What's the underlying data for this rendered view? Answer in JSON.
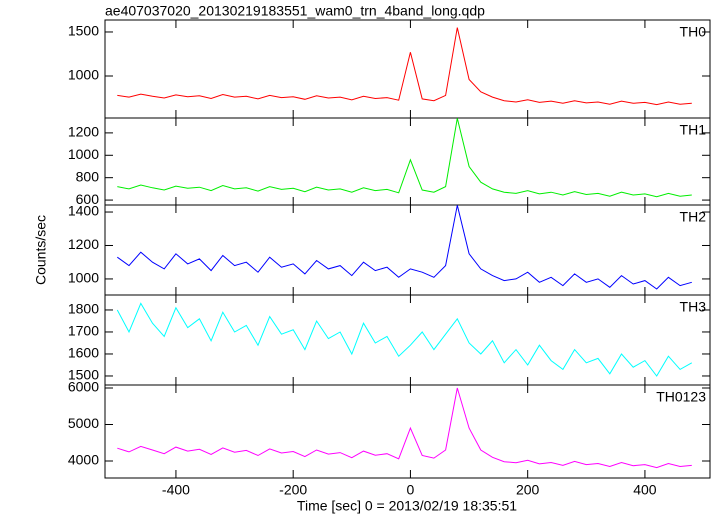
{
  "figure": {
    "title": "ae407037020_20130219183551_wam0_trn_4band_long.qdp",
    "ylabel": "Counts/sec",
    "xlabel": "Time [sec] 0 = 2013/02/19 18:35:51"
  },
  "chart_data": [
    {
      "type": "line",
      "xlim": [
        -521,
        511
      ],
      "xticks": [
        -400,
        -200,
        0,
        200,
        400
      ],
      "ylim": [
        523,
        1636
      ],
      "yticks": [
        1000,
        1500
      ],
      "x": [
        -500,
        -480,
        -460,
        -440,
        -420,
        -400,
        -380,
        -360,
        -340,
        -320,
        -300,
        -280,
        -260,
        -240,
        -220,
        -200,
        -180,
        -160,
        -140,
        -120,
        -100,
        -80,
        -60,
        -40,
        -20,
        0,
        20,
        40,
        60,
        80,
        100,
        120,
        140,
        160,
        180,
        200,
        220,
        240,
        260,
        280,
        300,
        320,
        340,
        360,
        380,
        400,
        420,
        440,
        460,
        480
      ],
      "series": [
        {
          "name": "TH0",
          "color": "#ff0000",
          "values": [
            780,
            760,
            795,
            770,
            750,
            785,
            765,
            775,
            745,
            790,
            760,
            770,
            740,
            780,
            755,
            765,
            735,
            775,
            750,
            760,
            730,
            770,
            745,
            755,
            725,
            1270,
            740,
            720,
            780,
            1550,
            960,
            820,
            760,
            720,
            705,
            730,
            700,
            715,
            690,
            720,
            695,
            705,
            680,
            715,
            690,
            700,
            675,
            705,
            680,
            690
          ]
        }
      ]
    },
    {
      "type": "line",
      "xlim": [
        -521,
        511
      ],
      "xticks": [
        -400,
        -200,
        0,
        200,
        400
      ],
      "ylim": [
        556,
        1333
      ],
      "yticks": [
        600,
        800,
        1000,
        1200
      ],
      "x": [
        -500,
        -480,
        -460,
        -440,
        -420,
        -400,
        -380,
        -360,
        -340,
        -320,
        -300,
        -280,
        -260,
        -240,
        -220,
        -200,
        -180,
        -160,
        -140,
        -120,
        -100,
        -80,
        -60,
        -40,
        -20,
        0,
        20,
        40,
        60,
        80,
        100,
        120,
        140,
        160,
        180,
        200,
        220,
        240,
        260,
        280,
        300,
        320,
        340,
        360,
        380,
        400,
        420,
        440,
        460,
        480
      ],
      "series": [
        {
          "name": "TH1",
          "color": "#00ee00",
          "values": [
            720,
            700,
            735,
            710,
            690,
            725,
            705,
            715,
            685,
            730,
            700,
            710,
            680,
            720,
            695,
            705,
            675,
            715,
            690,
            700,
            670,
            710,
            685,
            695,
            665,
            960,
            690,
            670,
            720,
            1330,
            900,
            760,
            700,
            670,
            660,
            685,
            655,
            670,
            645,
            675,
            650,
            660,
            635,
            670,
            645,
            655,
            630,
            660,
            635,
            645
          ]
        }
      ]
    },
    {
      "type": "line",
      "xlim": [
        -521,
        511
      ],
      "xticks": [
        -400,
        -200,
        0,
        200,
        400
      ],
      "ylim": [
        904,
        1442
      ],
      "yticks": [
        1000,
        1200,
        1400
      ],
      "x": [
        -500,
        -480,
        -460,
        -440,
        -420,
        -400,
        -380,
        -360,
        -340,
        -320,
        -300,
        -280,
        -260,
        -240,
        -220,
        -200,
        -180,
        -160,
        -140,
        -120,
        -100,
        -80,
        -60,
        -40,
        -20,
        0,
        20,
        40,
        60,
        80,
        100,
        120,
        140,
        160,
        180,
        200,
        220,
        240,
        260,
        280,
        300,
        320,
        340,
        360,
        380,
        400,
        420,
        440,
        460,
        480
      ],
      "series": [
        {
          "name": "TH2",
          "color": "#0000ff",
          "values": [
            1130,
            1080,
            1160,
            1100,
            1060,
            1150,
            1090,
            1120,
            1050,
            1140,
            1080,
            1100,
            1040,
            1130,
            1070,
            1090,
            1030,
            1110,
            1060,
            1080,
            1020,
            1100,
            1050,
            1070,
            1010,
            1060,
            1040,
            1010,
            1080,
            1440,
            1150,
            1060,
            1020,
            990,
            1000,
            1040,
            980,
            1010,
            960,
            1030,
            980,
            1000,
            950,
            1020,
            970,
            990,
            940,
            1010,
            960,
            980
          ]
        }
      ]
    },
    {
      "type": "line",
      "xlim": [
        -521,
        511
      ],
      "xticks": [
        -400,
        -200,
        0,
        200,
        400
      ],
      "ylim": [
        1459,
        1868
      ],
      "yticks": [
        1500,
        1600,
        1700,
        1800
      ],
      "x": [
        -500,
        -480,
        -460,
        -440,
        -420,
        -400,
        -380,
        -360,
        -340,
        -320,
        -300,
        -280,
        -260,
        -240,
        -220,
        -200,
        -180,
        -160,
        -140,
        -120,
        -100,
        -80,
        -60,
        -40,
        -20,
        0,
        20,
        40,
        60,
        80,
        100,
        120,
        140,
        160,
        180,
        200,
        220,
        240,
        260,
        280,
        300,
        320,
        340,
        360,
        380,
        400,
        420,
        440,
        460,
        480
      ],
      "series": [
        {
          "name": "TH3",
          "color": "#00ffff",
          "values": [
            1800,
            1700,
            1830,
            1740,
            1680,
            1810,
            1720,
            1760,
            1660,
            1790,
            1700,
            1730,
            1640,
            1770,
            1690,
            1710,
            1620,
            1750,
            1670,
            1700,
            1600,
            1740,
            1650,
            1680,
            1590,
            1640,
            1700,
            1620,
            1690,
            1760,
            1650,
            1600,
            1660,
            1560,
            1620,
            1550,
            1640,
            1570,
            1530,
            1620,
            1560,
            1580,
            1510,
            1600,
            1540,
            1570,
            1500,
            1590,
            1530,
            1560
          ]
        }
      ]
    },
    {
      "type": "line",
      "xlim": [
        -521,
        511
      ],
      "xticks": [
        -400,
        -200,
        0,
        200,
        400
      ],
      "ylim": [
        3534,
        6082
      ],
      "yticks": [
        4000,
        5000,
        6000
      ],
      "x": [
        -500,
        -480,
        -460,
        -440,
        -420,
        -400,
        -380,
        -360,
        -340,
        -320,
        -300,
        -280,
        -260,
        -240,
        -220,
        -200,
        -180,
        -160,
        -140,
        -120,
        -100,
        -80,
        -60,
        -40,
        -20,
        0,
        20,
        40,
        60,
        80,
        100,
        120,
        140,
        160,
        180,
        200,
        220,
        240,
        260,
        280,
        300,
        320,
        340,
        360,
        380,
        400,
        420,
        440,
        460,
        480
      ],
      "series": [
        {
          "name": "TH0123",
          "color": "#ff00ff",
          "values": [
            4350,
            4250,
            4400,
            4300,
            4200,
            4380,
            4270,
            4320,
            4180,
            4360,
            4240,
            4290,
            4150,
            4330,
            4220,
            4260,
            4120,
            4300,
            4190,
            4230,
            4090,
            4270,
            4160,
            4200,
            4060,
            4900,
            4150,
            4080,
            4300,
            6000,
            4900,
            4300,
            4100,
            3980,
            3950,
            4020,
            3920,
            3960,
            3880,
            3990,
            3900,
            3930,
            3850,
            3960,
            3870,
            3900,
            3820,
            3930,
            3850,
            3880
          ]
        }
      ]
    }
  ]
}
